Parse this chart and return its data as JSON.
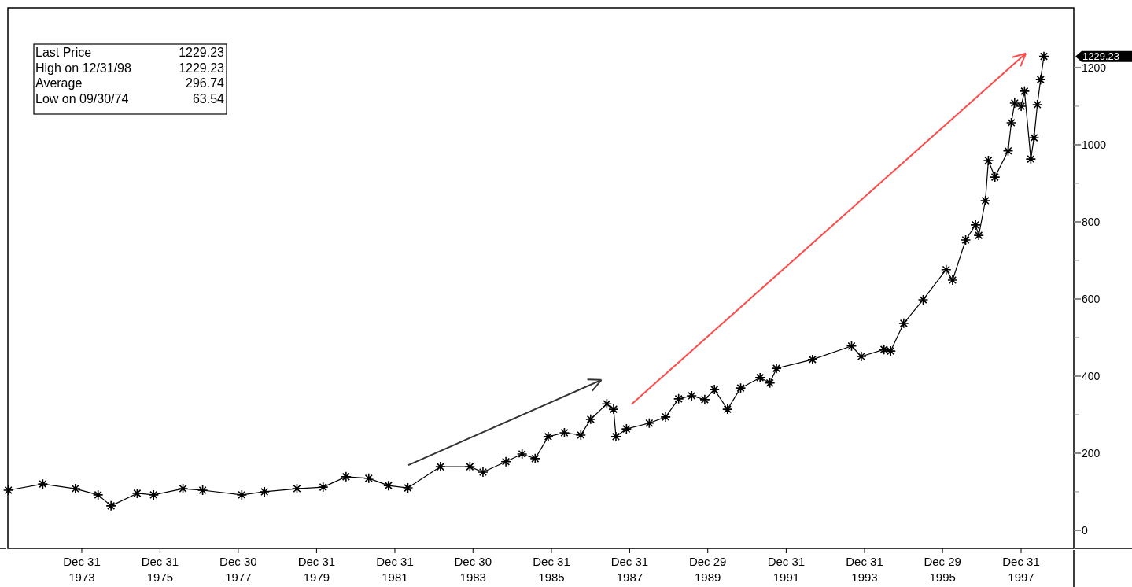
{
  "chart_data": {
    "type": "line",
    "marker": "cross",
    "line_style": "solid",
    "xlim": [
      "1972-02-10",
      "1999-05-07"
    ],
    "ylim": [
      -47,
      1355
    ],
    "xticks": [
      {
        "value": "1973-12-31",
        "label": "Dec 31\n1973"
      },
      {
        "value": "1975-12-31",
        "label": "Dec 31\n1975"
      },
      {
        "value": "1977-12-30",
        "label": "Dec 30\n1977"
      },
      {
        "value": "1979-12-31",
        "label": "Dec 31\n1979"
      },
      {
        "value": "1981-12-31",
        "label": "Dec 31\n1981"
      },
      {
        "value": "1983-12-30",
        "label": "Dec 30\n1983"
      },
      {
        "value": "1985-12-31",
        "label": "Dec 31\n1985"
      },
      {
        "value": "1987-12-31",
        "label": "Dec 31\n1987"
      },
      {
        "value": "1989-12-29",
        "label": "Dec 29\n1989"
      },
      {
        "value": "1991-12-31",
        "label": "Dec 31\n1991"
      },
      {
        "value": "1993-12-31",
        "label": "Dec 31\n1993"
      },
      {
        "value": "1995-12-29",
        "label": "Dec 29\n1995"
      },
      {
        "value": "1997-12-31",
        "label": "Dec 31\n1997"
      }
    ],
    "yticks": [
      0,
      {
        "value": 100,
        "label": null
      },
      200,
      {
        "value": 300,
        "label": null
      },
      400,
      {
        "value": 500,
        "label": null
      },
      600,
      {
        "value": 700,
        "label": null
      },
      800,
      {
        "value": 900,
        "label": null
      },
      1000,
      {
        "value": 1100,
        "label": null
      },
      1200
    ],
    "series": [
      {
        "color": "#000000",
        "x": [
          "1972-02-15",
          "1973-01",
          "1973-11",
          "1974-06",
          "1974-09-30",
          "1975-06",
          "1975-11",
          "1976-08",
          "1977-02",
          "1978-02",
          "1978-09",
          "1979-07",
          "1980-03",
          "1980-10",
          "1981-05",
          "1981-11",
          "1982-05",
          "1983-03",
          "1983-12",
          "1984-04",
          "1984-11",
          "1985-04",
          "1985-08",
          "1985-12",
          "1986-05",
          "1986-10",
          "1987-01",
          "1987-06",
          "1987-08-03",
          "1987-08-25",
          "1987-12",
          "1988-07",
          "1988-12",
          "1989-04",
          "1989-08",
          "1989-12",
          "1990-03",
          "1990-07",
          "1990-11",
          "1991-05",
          "1991-08",
          "1991-10",
          "1992-09",
          "1993-09",
          "1993-12",
          "1994-07",
          "1994-09",
          "1995-01",
          "1995-07",
          "1996-02",
          "1996-04",
          "1996-08",
          "1996-11",
          "1996-12",
          "1997-02",
          "1997-03",
          "1997-05",
          "1997-09",
          "1997-10",
          "1997-11",
          "1998-01",
          "1998-02",
          "1998-04",
          "1998-05",
          "1998-06",
          "1998-07",
          "1998-08"
        ],
        "values": [
          104,
          120,
          108,
          92,
          63.54,
          96,
          92,
          108,
          104,
          92,
          100,
          108,
          112,
          139,
          135,
          116,
          110,
          165,
          165,
          151,
          178,
          198,
          186,
          243,
          253,
          247,
          288,
          328,
          314,
          243,
          263,
          278,
          294,
          341,
          349,
          339,
          365,
          314,
          369,
          396,
          382,
          420,
          443,
          478,
          451,
          469,
          465,
          537,
          598,
          676,
          649,
          753,
          792,
          765,
          855,
          959,
          916,
          984,
          1057,
          1108,
          1100,
          1139,
          963,
          1018,
          1104,
          1169,
          1229.23
        ],
        "name": null
      }
    ],
    "annotations": [
      "Last Price",
      "1229.23",
      "High on  12/31/98",
      "1229.23",
      "Average",
      "296.74",
      "Low on  09/30/74",
      "63.54",
      "1229.23"
    ]
  }
}
